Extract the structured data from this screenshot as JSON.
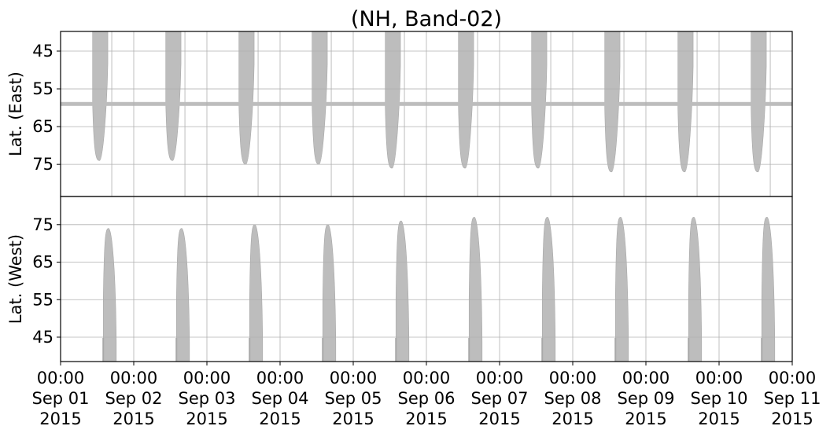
{
  "chart_data": [
    {
      "type": "heatmap",
      "title": "(NH, Band-02)",
      "panel": "east",
      "ylabel": "Lat. (East)",
      "ylim": [
        39.8,
        83.5
      ],
      "y_inverted": true,
      "yticks": [
        45,
        55,
        65,
        75
      ],
      "xlabel": "",
      "xlim": [
        "2015-09-01 00:00",
        "2015-09-11 00:00"
      ],
      "grid": true,
      "fill_color": "#bdbdbd",
      "swath_band_latitude": 59,
      "swaths": [
        {
          "date": "2015-09-01",
          "start_hour": 10.5,
          "end_hour": 15.5,
          "max_lat": 74
        },
        {
          "date": "2015-09-02",
          "start_hour": 10.5,
          "end_hour": 15.5,
          "max_lat": 74
        },
        {
          "date": "2015-09-03",
          "start_hour": 10.5,
          "end_hour": 15.5,
          "max_lat": 75
        },
        {
          "date": "2015-09-04",
          "start_hour": 10.5,
          "end_hour": 15.5,
          "max_lat": 75
        },
        {
          "date": "2015-09-05",
          "start_hour": 10.5,
          "end_hour": 15.5,
          "max_lat": 76
        },
        {
          "date": "2015-09-06",
          "start_hour": 10.5,
          "end_hour": 15.5,
          "max_lat": 76
        },
        {
          "date": "2015-09-07",
          "start_hour": 10.5,
          "end_hour": 15.5,
          "max_lat": 76
        },
        {
          "date": "2015-09-08",
          "start_hour": 10.5,
          "end_hour": 15.5,
          "max_lat": 77
        },
        {
          "date": "2015-09-09",
          "start_hour": 10.5,
          "end_hour": 15.5,
          "max_lat": 77
        },
        {
          "date": "2015-09-10",
          "start_hour": 10.5,
          "end_hour": 15.5,
          "max_lat": 77
        }
      ]
    },
    {
      "type": "heatmap",
      "panel": "west",
      "ylabel": "Lat. (West)",
      "ylim": [
        38.5,
        82.5
      ],
      "y_inverted": false,
      "yticks": [
        45,
        55,
        65,
        75
      ],
      "xlabel": "",
      "xlim": [
        "2015-09-01 00:00",
        "2015-09-11 00:00"
      ],
      "xticks": [
        [
          "00:00",
          "Sep 01",
          "2015"
        ],
        [
          "00:00",
          "Sep 02",
          "2015"
        ],
        [
          "00:00",
          "Sep 03",
          "2015"
        ],
        [
          "00:00",
          "Sep 04",
          "2015"
        ],
        [
          "00:00",
          "Sep 05",
          "2015"
        ],
        [
          "00:00",
          "Sep 06",
          "2015"
        ],
        [
          "00:00",
          "Sep 07",
          "2015"
        ],
        [
          "00:00",
          "Sep 08",
          "2015"
        ],
        [
          "00:00",
          "Sep 09",
          "2015"
        ],
        [
          "00:00",
          "Sep 10",
          "2015"
        ],
        [
          "00:00",
          "Sep 11",
          "2015"
        ]
      ],
      "grid": true,
      "fill_color": "#bdbdbd",
      "swaths": [
        {
          "date": "2015-09-01",
          "start_hour": 14.0,
          "end_hour": 23.5,
          "max_lat": 74
        },
        {
          "date": "2015-09-02",
          "start_hour": 14.0,
          "end_hour": 23.5,
          "max_lat": 74
        },
        {
          "date": "2015-09-03",
          "start_hour": 14.0,
          "end_hour": 23.5,
          "max_lat": 75
        },
        {
          "date": "2015-09-04",
          "start_hour": 14.0,
          "end_hour": 23.5,
          "max_lat": 75
        },
        {
          "date": "2015-09-05",
          "start_hour": 14.0,
          "end_hour": 23.5,
          "max_lat": 76
        },
        {
          "date": "2015-09-06",
          "start_hour": 14.0,
          "end_hour": 23.5,
          "max_lat": 77
        },
        {
          "date": "2015-09-07",
          "start_hour": 14.0,
          "end_hour": 23.5,
          "max_lat": 77
        },
        {
          "date": "2015-09-08",
          "start_hour": 14.0,
          "end_hour": 23.5,
          "max_lat": 77
        },
        {
          "date": "2015-09-09",
          "start_hour": 14.0,
          "end_hour": 23.5,
          "max_lat": 77
        },
        {
          "date": "2015-09-10",
          "start_hour": 14.0,
          "end_hour": 23.5,
          "max_lat": 77
        }
      ]
    }
  ]
}
